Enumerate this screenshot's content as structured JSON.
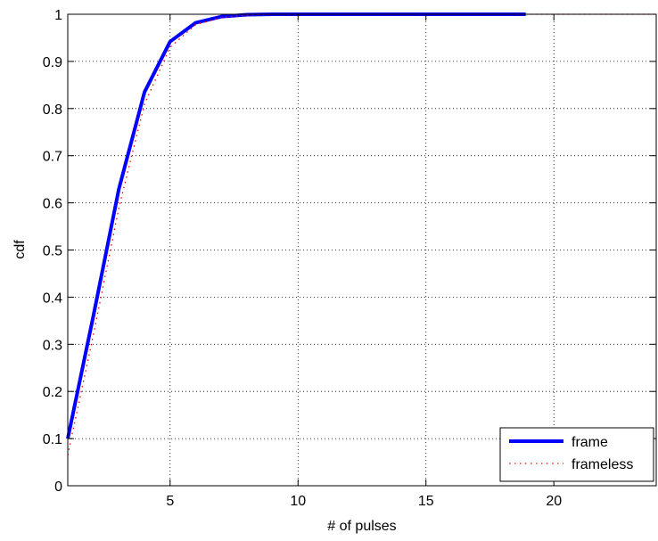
{
  "chart_data": {
    "type": "line",
    "title": "",
    "xlabel": "# of pulses",
    "ylabel": "cdf",
    "xlim": [
      1,
      24
    ],
    "ylim": [
      0,
      1
    ],
    "xticks": [
      5,
      10,
      15,
      20
    ],
    "yticks": [
      0,
      0.1,
      0.2,
      0.3,
      0.4,
      0.5,
      0.6,
      0.7,
      0.8,
      0.9,
      1
    ],
    "xtick_labels": [
      "5",
      "10",
      "15",
      "20"
    ],
    "ytick_labels": [
      "0",
      "0.1",
      "0.2",
      "0.3",
      "0.4",
      "0.5",
      "0.6",
      "0.7",
      "0.8",
      "0.9",
      "1"
    ],
    "grid": true,
    "legend_position": "bottom-right",
    "series": [
      {
        "name": "frame",
        "color": "#0000ff",
        "style": "solid",
        "x": [
          1,
          2,
          3,
          4,
          5,
          6,
          7,
          8,
          9,
          10,
          11,
          12,
          13,
          14,
          15,
          16,
          17,
          18,
          18.9
        ],
        "y": [
          0.1,
          0.36,
          0.63,
          0.835,
          0.942,
          0.982,
          0.995,
          0.999,
          1,
          1,
          1,
          1,
          1,
          1,
          1,
          1,
          1,
          1,
          1
        ]
      },
      {
        "name": "frameless",
        "color": "#ff0000",
        "style": "dotted",
        "x": [
          1,
          2,
          3,
          4,
          5,
          6,
          7,
          8,
          9,
          10,
          11,
          12,
          13,
          14,
          15,
          16,
          17,
          18,
          19,
          20,
          21,
          22,
          23,
          24
        ],
        "y": [
          0.065,
          0.32,
          0.59,
          0.81,
          0.93,
          0.978,
          0.993,
          0.998,
          1,
          1,
          1,
          1,
          1,
          1,
          1,
          1,
          1,
          1,
          1,
          1,
          1,
          1,
          1,
          1
        ]
      }
    ]
  }
}
